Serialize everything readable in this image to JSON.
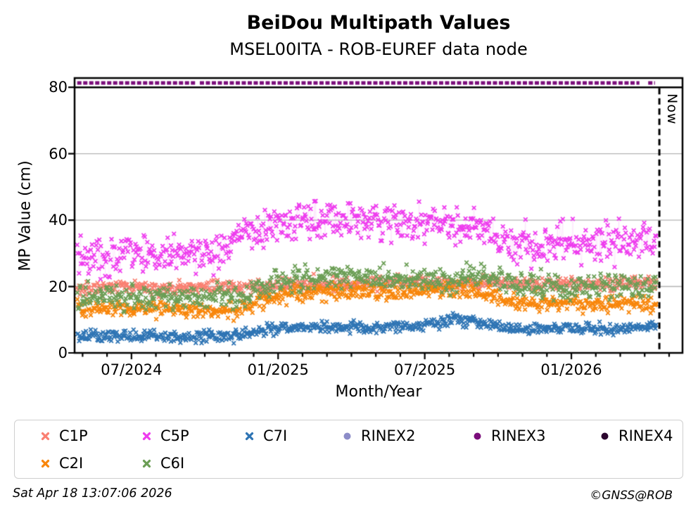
{
  "header": {
    "title": "BeiDou Multipath Values",
    "subtitle": "MSEL00ITA - ROB-EUREF data node"
  },
  "footer": {
    "timestamp": "Sat Apr 18 13:07:06 2026",
    "credit": "©GNSS@ROB"
  },
  "chart_data": {
    "type": "scatter",
    "title": "BeiDou Multipath Values",
    "subtitle": "MSEL00ITA - ROB-EUREF data node",
    "xlabel": "Month/Year",
    "ylabel": "MP Value (cm)",
    "ylim": [
      0,
      82.8
    ],
    "xlim_decimal_year": [
      2024.306,
      2026.379
    ],
    "grid": "horizontal",
    "grid_values": [
      20,
      40,
      60
    ],
    "grid_color": "#b3b3b3",
    "threshold_line": {
      "value": 80,
      "color": "#000000"
    },
    "now_marker": {
      "t": 2026.3,
      "label": "Now",
      "style": "dashed",
      "color": "#000000"
    },
    "y_ticks": [
      {
        "v": 0,
        "label": "0"
      },
      {
        "v": 20,
        "label": "20"
      },
      {
        "v": 40,
        "label": "40"
      },
      {
        "v": 60,
        "label": "60"
      },
      {
        "v": 80,
        "label": "80"
      }
    ],
    "x_major_ticks": [
      {
        "t": 2024.5,
        "label": "07/2024"
      },
      {
        "t": 2025.0,
        "label": "01/2025"
      },
      {
        "t": 2025.5,
        "label": "07/2025"
      },
      {
        "t": 2026.0,
        "label": "01/2026"
      }
    ],
    "x_minor_ticks": {
      "start_t": 2024.3333,
      "end_t": 2026.335,
      "step_months": 1
    },
    "data_time_range": [
      2024.315,
      2026.29
    ],
    "samples_per_year": 345,
    "series": [
      {
        "name": "C1P",
        "color": "#FA8072",
        "marker": "x",
        "sigma": 1.1,
        "trend": [
          [
            2024.315,
            19.5
          ],
          [
            2024.9,
            19.8
          ],
          [
            2025.05,
            20.8
          ],
          [
            2025.45,
            21.3
          ],
          [
            2025.75,
            21.0
          ],
          [
            2026.0,
            20.6
          ],
          [
            2026.29,
            21.0
          ]
        ]
      },
      {
        "name": "C2I",
        "color": "#F8860B",
        "marker": "x",
        "sigma": 1.3,
        "trend": [
          [
            2024.315,
            13.8
          ],
          [
            2024.6,
            13.2
          ],
          [
            2024.85,
            12.8
          ],
          [
            2024.98,
            17.0
          ],
          [
            2025.15,
            18.3
          ],
          [
            2025.4,
            18.3
          ],
          [
            2025.55,
            19.3
          ],
          [
            2025.68,
            19.0
          ],
          [
            2025.78,
            15.8
          ],
          [
            2025.95,
            14.8
          ],
          [
            2026.29,
            15.0
          ]
        ]
      },
      {
        "name": "C6I",
        "color": "#6B9E55",
        "marker": "x",
        "sigma": 1.9,
        "trend": [
          [
            2024.315,
            17.3
          ],
          [
            2024.6,
            16.8
          ],
          [
            2024.88,
            17.2
          ],
          [
            2025.0,
            21.5
          ],
          [
            2025.2,
            23.0
          ],
          [
            2025.4,
            22.5
          ],
          [
            2025.57,
            21.5
          ],
          [
            2025.65,
            23.8
          ],
          [
            2025.75,
            22.0
          ],
          [
            2025.85,
            20.3
          ],
          [
            2026.05,
            19.8
          ],
          [
            2026.29,
            19.8
          ]
        ]
      },
      {
        "name": "C5P",
        "color": "#EE3CEE",
        "marker": "x",
        "sigma": 3.0,
        "trend": [
          [
            2024.315,
            30.0
          ],
          [
            2024.55,
            29.5
          ],
          [
            2024.8,
            30.5
          ],
          [
            2024.95,
            38.0
          ],
          [
            2025.1,
            40.5
          ],
          [
            2025.3,
            40.0
          ],
          [
            2025.5,
            38.5
          ],
          [
            2025.65,
            38.0
          ],
          [
            2025.72,
            36.0
          ],
          [
            2025.82,
            32.5
          ],
          [
            2026.0,
            33.0
          ],
          [
            2026.15,
            33.5
          ],
          [
            2026.29,
            34.5
          ]
        ]
      },
      {
        "name": "C7I",
        "color": "#2E74B4",
        "marker": "x",
        "sigma": 0.9,
        "trend": [
          [
            2024.315,
            5.2
          ],
          [
            2024.6,
            4.8
          ],
          [
            2024.85,
            5.0
          ],
          [
            2024.98,
            7.3
          ],
          [
            2025.1,
            7.8
          ],
          [
            2025.35,
            7.6
          ],
          [
            2025.5,
            8.0
          ],
          [
            2025.6,
            10.2
          ],
          [
            2025.7,
            9.3
          ],
          [
            2025.78,
            7.0
          ],
          [
            2025.95,
            7.2
          ],
          [
            2026.15,
            7.3
          ],
          [
            2026.29,
            7.8
          ]
        ]
      },
      {
        "name": "RINEX2",
        "color": "#8C8CC8",
        "marker": "dot",
        "value": null,
        "segments": []
      },
      {
        "name": "RINEX3",
        "color": "#7B0D7B",
        "marker": "dot",
        "value": 81.3,
        "segments": [
          [
            2024.315,
            2024.718
          ],
          [
            2024.733,
            2026.232
          ],
          [
            2026.262,
            2026.285
          ]
        ]
      },
      {
        "name": "RINEX4",
        "color": "#2B062E",
        "marker": "dot",
        "value": null,
        "segments": []
      }
    ],
    "legend_rows": [
      [
        "C1P",
        "C5P",
        "C7I",
        "RINEX2",
        "RINEX3",
        "RINEX4"
      ],
      [
        "C2I",
        "C6I"
      ]
    ],
    "legend_position": "bottom"
  }
}
